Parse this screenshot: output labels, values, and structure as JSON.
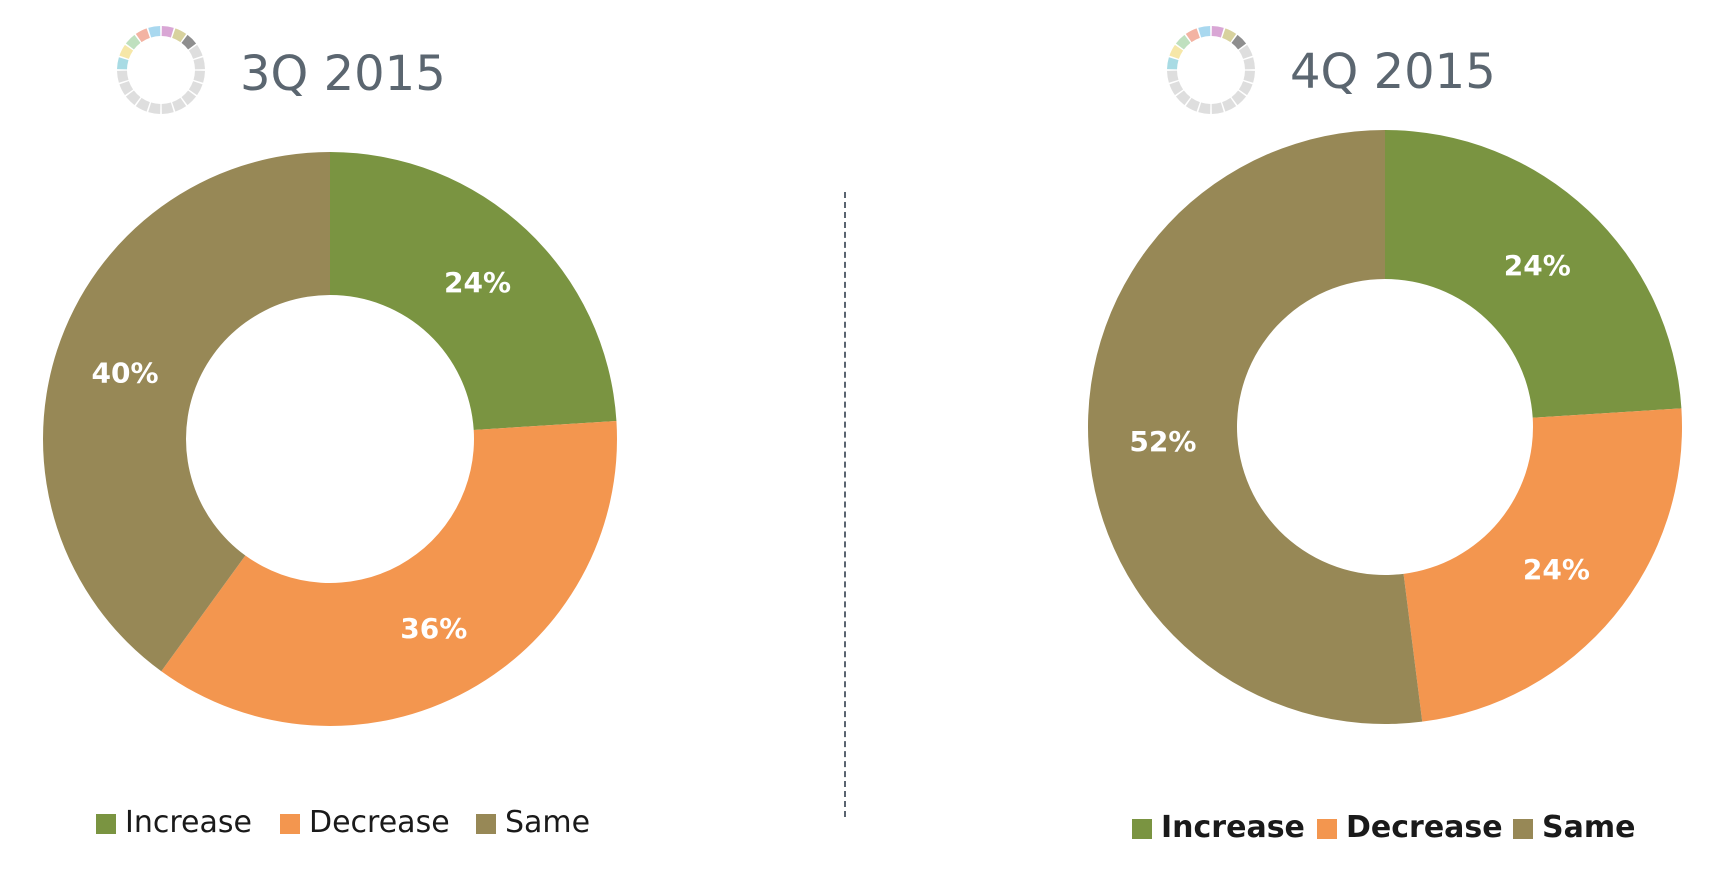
{
  "colors": {
    "Increase": "#7a9441",
    "Decrease": "#f3964f",
    "Same": "#978856",
    "icon_light_segments": [
      "#a8dbe4",
      "#f6e7a8",
      "#bfe0bf",
      "#f3b3a3",
      "#a9d8ef",
      "#d9a6d5",
      "#d8d29e",
      "#8e8e8e"
    ],
    "icon_ring": "#dedede"
  },
  "chart_data": [
    {
      "type": "pie",
      "title": "3Q 2015",
      "categories": [
        "Increase",
        "Decrease",
        "Same"
      ],
      "values": [
        24,
        36,
        40
      ],
      "data_labels": [
        "24%",
        "36%",
        "40%"
      ],
      "legend": [
        "Increase",
        "Decrease",
        "Same"
      ],
      "legend_bold": false
    },
    {
      "type": "pie",
      "title": "4Q 2015",
      "categories": [
        "Increase",
        "Decrease",
        "Same"
      ],
      "values": [
        24,
        24,
        52
      ],
      "data_labels": [
        "24%",
        "24%",
        "52%"
      ],
      "legend": [
        "Increase",
        "Decrease",
        "Same"
      ],
      "legend_bold": true
    }
  ]
}
